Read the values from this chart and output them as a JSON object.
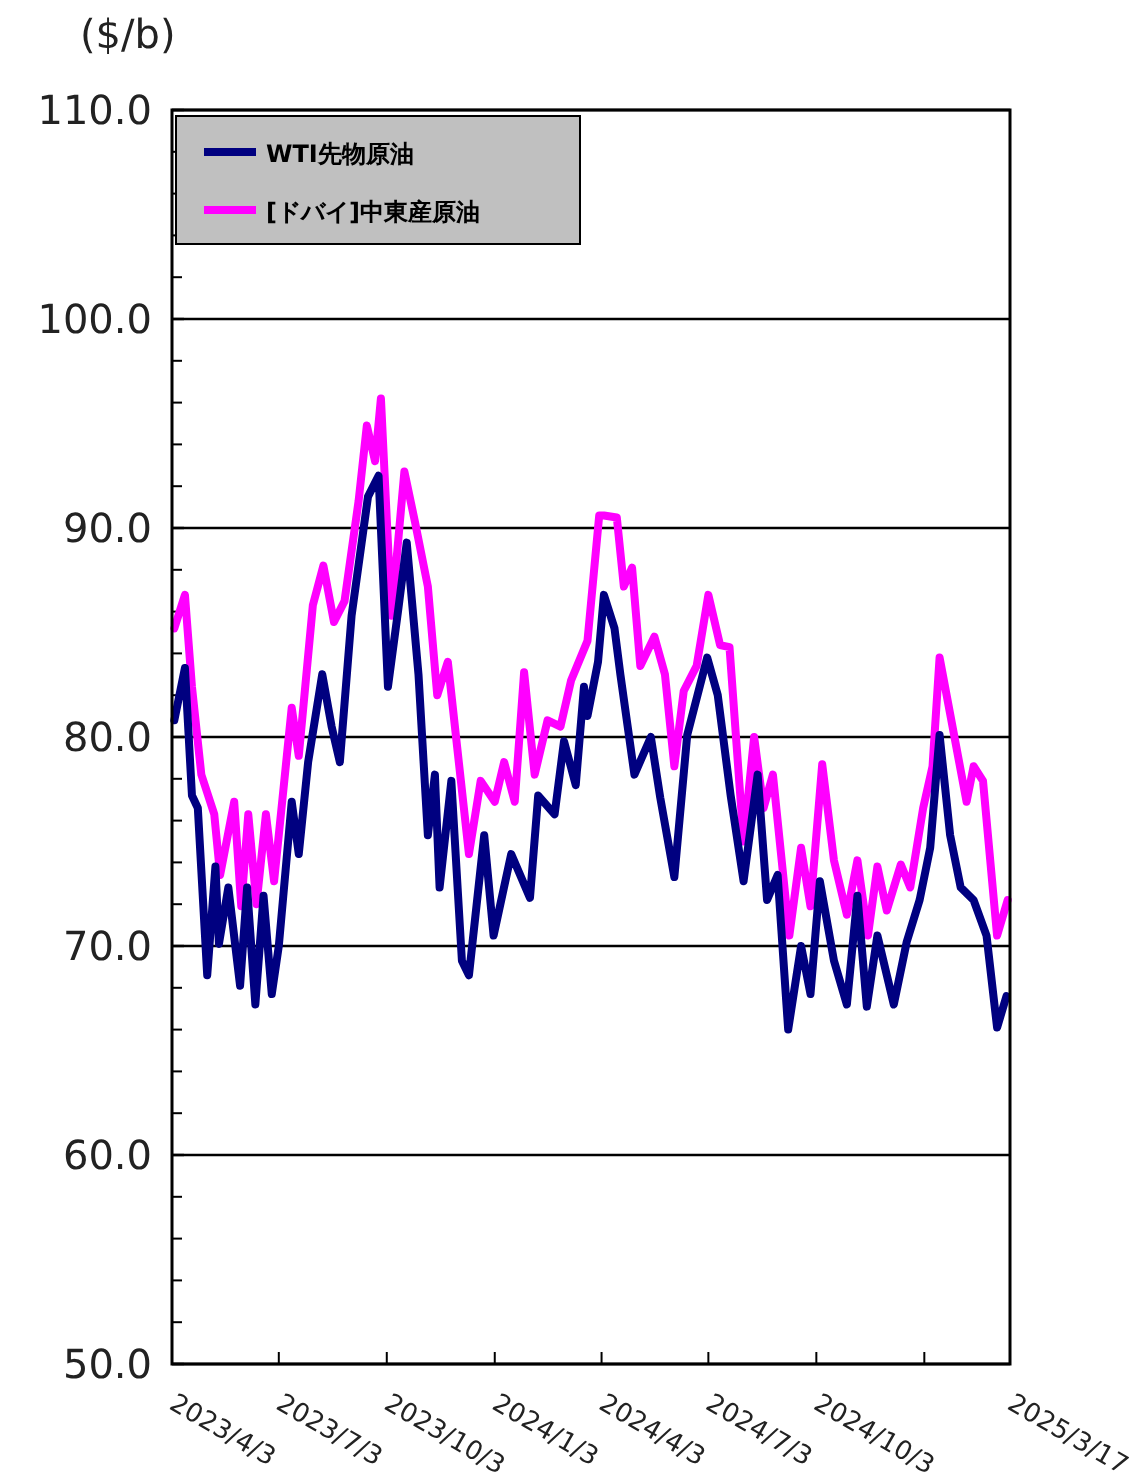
{
  "chart_data": {
    "type": "line",
    "ylabel": "($/b)",
    "xlim": [
      "2023-04-03",
      "2025-03-17"
    ],
    "xticks": [
      {
        "value": "2023-04-03",
        "label": "2023/4/3"
      },
      {
        "value": "2023-07-03",
        "label": "2023/7/3"
      },
      {
        "value": "2023-10-03",
        "label": "2023/10/3"
      },
      {
        "value": "2024-01-03",
        "label": "2024/1/3"
      },
      {
        "value": "2024-04-03",
        "label": "2024/4/3"
      },
      {
        "value": "2024-07-03",
        "label": "2024/7/3"
      },
      {
        "value": "2024-10-03",
        "label": "2024/10/3"
      },
      {
        "value": "2025-01-03",
        "label": null
      },
      {
        "value": "2025-03-17",
        "label": "2025/3/17"
      }
    ],
    "ylim": [
      50,
      110
    ],
    "yticks": [
      {
        "value": 50,
        "label": "50.0"
      },
      {
        "value": 60,
        "label": "60.0"
      },
      {
        "value": 70,
        "label": "70.0"
      },
      {
        "value": 80,
        "label": "80.0"
      },
      {
        "value": 90,
        "label": "90.0"
      },
      {
        "value": 100,
        "label": "100.0"
      },
      {
        "value": 110,
        "label": "110.0"
      }
    ],
    "grid": "y",
    "legend": "top left",
    "marker": "none",
    "line_style": "solid",
    "series": [
      {
        "name": "WTI先物原油",
        "color": "#000080",
        "x": [
          "2023-04-05",
          "2023-04-14",
          "2023-04-20",
          "2023-04-25",
          "2023-05-03",
          "2023-05-10",
          "2023-05-13",
          "2023-05-21",
          "2023-05-31",
          "2023-06-06",
          "2023-06-13",
          "2023-06-20",
          "2023-06-27",
          "2023-07-03",
          "2023-07-14",
          "2023-07-20",
          "2023-07-28",
          "2023-08-09",
          "2023-08-17",
          "2023-08-24",
          "2023-09-03",
          "2023-09-17",
          "2023-09-26",
          "2023-10-04",
          "2023-10-13",
          "2023-10-20",
          "2023-10-30",
          "2023-11-07",
          "2023-11-13",
          "2023-11-17",
          "2023-11-27",
          "2023-12-06",
          "2023-12-12",
          "2023-12-25",
          "2024-01-02",
          "2024-01-17",
          "2024-02-02",
          "2024-02-09",
          "2024-02-23",
          "2024-03-02",
          "2024-03-12",
          "2024-03-19",
          "2024-03-22",
          "2024-03-31",
          "2024-04-05",
          "2024-04-14",
          "2024-04-19",
          "2024-05-01",
          "2024-05-15",
          "2024-05-23",
          "2024-06-04",
          "2024-06-15",
          "2024-07-02",
          "2024-07-11",
          "2024-07-22",
          "2024-08-02",
          "2024-08-14",
          "2024-08-22",
          "2024-08-31",
          "2024-09-09",
          "2024-09-20",
          "2024-09-28",
          "2024-10-06",
          "2024-10-18",
          "2024-10-29",
          "2024-11-07",
          "2024-11-15",
          "2024-11-24",
          "2024-12-08",
          "2024-12-19",
          "2024-12-30",
          "2025-01-08",
          "2025-01-16",
          "2025-01-25",
          "2025-02-03",
          "2025-02-14",
          "2025-02-25",
          "2025-03-06",
          "2025-03-14"
        ],
        "values": [
          80.8,
          83.3,
          77.2,
          76.6,
          68.6,
          73.8,
          70.1,
          72.8,
          68.1,
          72.8,
          67.2,
          72.4,
          67.7,
          70.0,
          76.9,
          74.4,
          78.8,
          83.0,
          80.5,
          78.8,
          85.8,
          91.5,
          92.5,
          82.4,
          86.2,
          89.3,
          83.0,
          75.3,
          78.2,
          72.8,
          77.9,
          69.3,
          68.6,
          75.3,
          70.5,
          74.4,
          72.3,
          77.2,
          76.3,
          79.8,
          77.7,
          82.4,
          81.0,
          83.6,
          86.8,
          85.2,
          83.0,
          78.2,
          80.0,
          77.1,
          73.3,
          80.1,
          83.8,
          82.0,
          77.2,
          73.1,
          78.2,
          72.2,
          73.4,
          66.0,
          70.0,
          67.7,
          73.1,
          69.3,
          67.2,
          72.4,
          67.1,
          70.5,
          67.2,
          70.2,
          72.2,
          74.7,
          80.1,
          75.3,
          72.8,
          72.2,
          70.5,
          66.1,
          67.6
        ]
      },
      {
        "name": "[ドバイ]中東産原油",
        "color": "#ff00ff",
        "x": [
          "2023-04-05",
          "2023-04-14",
          "2023-04-20",
          "2023-04-28",
          "2023-05-09",
          "2023-05-14",
          "2023-05-26",
          "2023-06-01",
          "2023-06-07",
          "2023-06-14",
          "2023-06-22",
          "2023-06-29",
          "2023-07-14",
          "2023-07-20",
          "2023-08-01",
          "2023-08-10",
          "2023-08-19",
          "2023-08-28",
          "2023-09-09",
          "2023-09-16",
          "2023-09-23",
          "2023-09-28",
          "2023-10-07",
          "2023-10-18",
          "2023-10-27",
          "2023-11-07",
          "2023-11-15",
          "2023-11-24",
          "2023-12-02",
          "2023-12-12",
          "2023-12-22",
          "2024-01-03",
          "2024-01-11",
          "2024-01-20",
          "2024-01-28",
          "2024-02-06",
          "2024-02-17",
          "2024-02-28",
          "2024-03-08",
          "2024-03-22",
          "2024-04-01",
          "2024-04-05",
          "2024-04-16",
          "2024-04-22",
          "2024-04-29",
          "2024-05-06",
          "2024-05-18",
          "2024-05-27",
          "2024-06-04",
          "2024-06-12",
          "2024-06-23",
          "2024-07-03",
          "2024-07-13",
          "2024-07-21",
          "2024-08-02",
          "2024-08-11",
          "2024-08-19",
          "2024-08-27",
          "2024-09-10",
          "2024-09-20",
          "2024-09-28",
          "2024-10-08",
          "2024-10-18",
          "2024-10-29",
          "2024-11-07",
          "2024-11-16",
          "2024-11-24",
          "2024-12-02",
          "2024-12-14",
          "2024-12-22",
          "2025-01-02",
          "2025-01-10",
          "2025-01-16",
          "2025-01-27",
          "2025-02-08",
          "2025-02-14",
          "2025-02-22",
          "2025-03-06",
          "2025-03-15"
        ],
        "values": [
          85.2,
          86.8,
          82.4,
          78.2,
          76.3,
          73.4,
          76.9,
          71.9,
          76.3,
          72.0,
          76.3,
          73.1,
          81.4,
          79.1,
          86.3,
          88.2,
          85.5,
          86.5,
          91.3,
          94.9,
          93.2,
          96.2,
          85.8,
          92.7,
          90.3,
          87.2,
          82.0,
          83.6,
          79.5,
          74.4,
          77.9,
          76.9,
          78.8,
          76.9,
          83.1,
          78.2,
          80.8,
          80.5,
          82.7,
          84.6,
          90.6,
          90.6,
          90.5,
          87.2,
          88.1,
          83.4,
          84.8,
          83.0,
          78.6,
          82.2,
          83.4,
          86.8,
          84.4,
          84.3,
          75.0,
          80.0,
          76.6,
          78.2,
          70.5,
          74.7,
          71.9,
          78.7,
          74.1,
          71.5,
          74.1,
          70.5,
          73.8,
          71.7,
          73.9,
          72.8,
          76.6,
          78.6,
          83.8,
          80.5,
          76.9,
          78.6,
          77.9,
          70.5,
          72.2
        ]
      }
    ]
  }
}
